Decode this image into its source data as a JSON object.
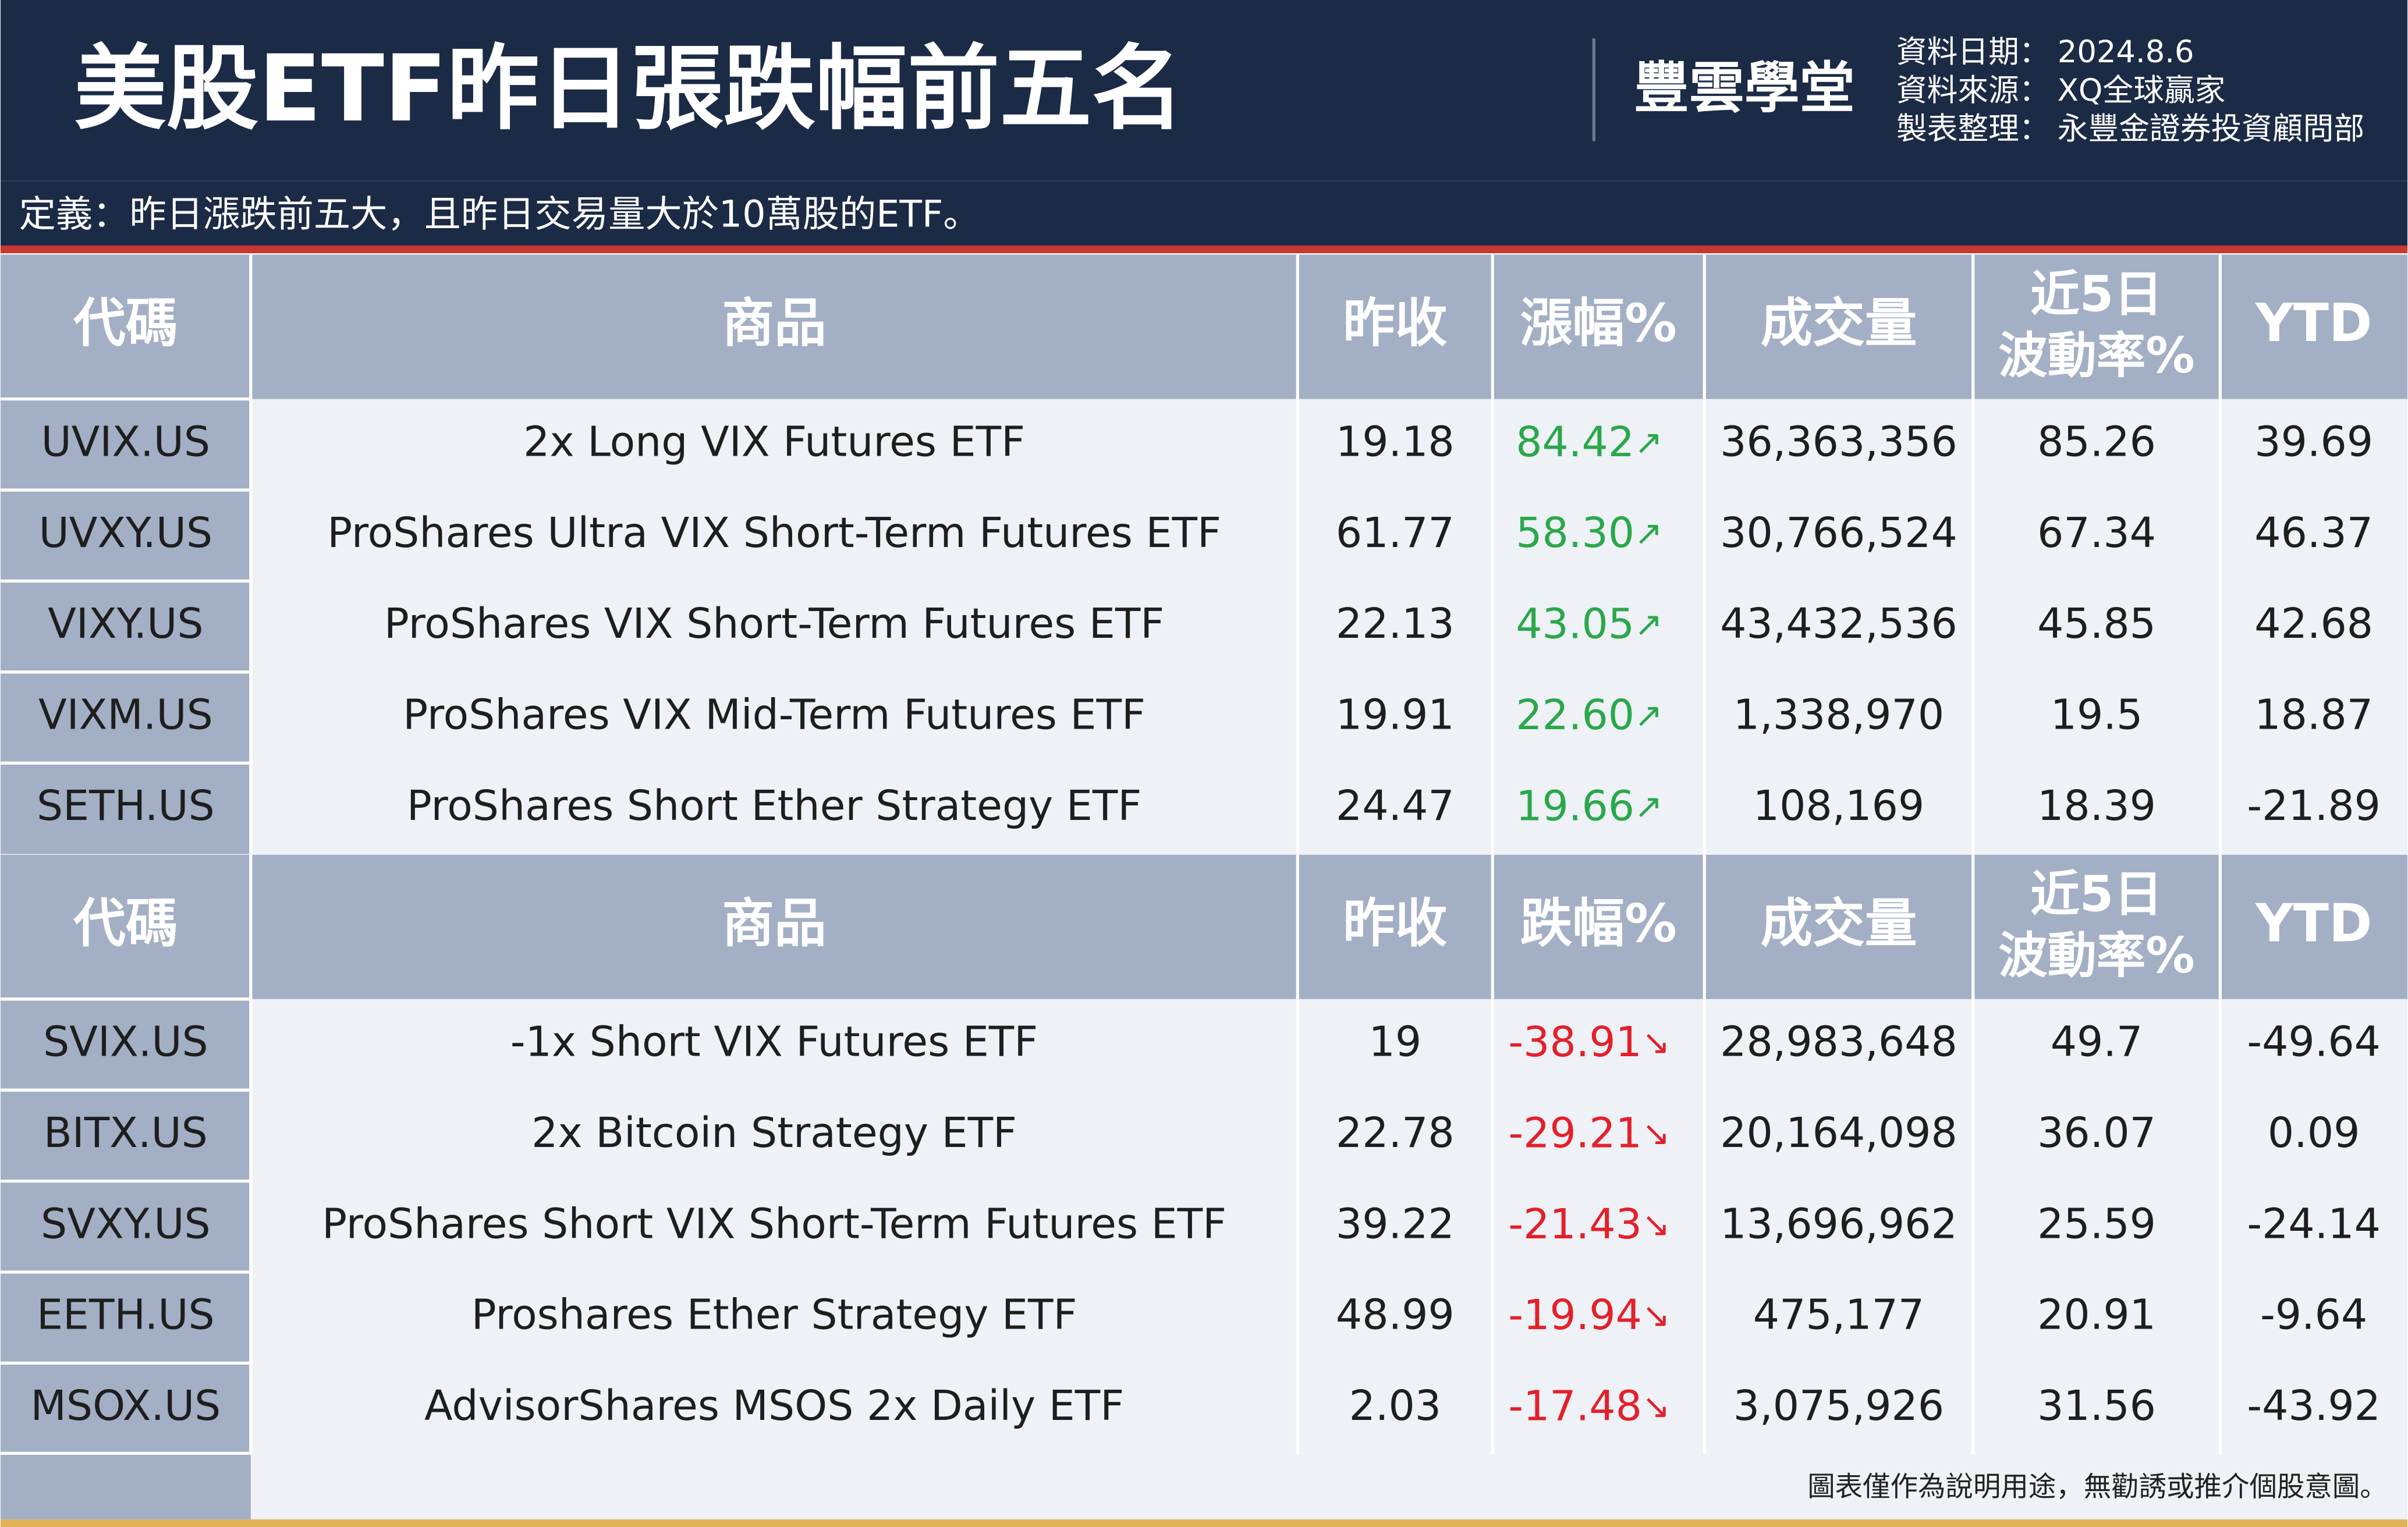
{
  "header": {
    "title": "美股ETF昨日張跌幅前五名",
    "brand": "豐雲學堂",
    "info": [
      {
        "label": "資料日期：",
        "value": "2024.8.6"
      },
      {
        "label": "資料來源：",
        "value": "XQ全球贏家"
      },
      {
        "label": "製表整理：",
        "value": "永豐金證券投資顧問部"
      }
    ]
  },
  "definition": "定義：昨日漲跌前五大，且昨日交易量大於10萬股的ETF。",
  "tables": [
    {
      "columns": [
        "代碼",
        "商品",
        "昨收",
        "漲幅%",
        "成交量",
        [
          "近5日",
          "波動率%"
        ],
        "YTD"
      ],
      "arrow": "↗",
      "rows": [
        [
          "UVIX.US",
          "2x Long VIX Futures ETF",
          "19.18",
          "84.42",
          "36,363,356",
          "85.26",
          "39.69"
        ],
        [
          "UVXY.US",
          "ProShares Ultra VIX Short-Term Futures ETF",
          "61.77",
          "58.30",
          "30,766,524",
          "67.34",
          "46.37"
        ],
        [
          "VIXY.US",
          "ProShares VIX Short-Term Futures ETF",
          "22.13",
          "43.05",
          "43,432,536",
          "45.85",
          "42.68"
        ],
        [
          "VIXM.US",
          "ProShares VIX Mid-Term Futures ETF",
          "19.91",
          "22.60",
          "1,338,970",
          "19.5",
          "18.87"
        ],
        [
          "SETH.US",
          "ProShares Short Ether Strategy ETF",
          "24.47",
          "19.66",
          "108,169",
          "18.39",
          "-21.89"
        ]
      ]
    },
    {
      "columns": [
        "代碼",
        "商品",
        "昨收",
        "跌幅%",
        "成交量",
        [
          "近5日",
          "波動率%"
        ],
        "YTD"
      ],
      "arrow": "↘",
      "rows": [
        [
          "SVIX.US",
          "-1x Short VIX Futures ETF",
          "19",
          "-38.91",
          "28,983,648",
          "49.7",
          "-49.64"
        ],
        [
          "BITX.US",
          "2x Bitcoin Strategy ETF",
          "22.78",
          "-29.21",
          "20,164,098",
          "36.07",
          "0.09"
        ],
        [
          "SVXY.US",
          "ProShares Short VIX Short-Term Futures ETF",
          "39.22",
          "-21.43",
          "13,696,962",
          "25.59",
          "-24.14"
        ],
        [
          "EETH.US",
          "Proshares Ether Strategy ETF",
          "48.99",
          "-19.94",
          "475,177",
          "20.91",
          "-9.64"
        ],
        [
          "MSOX.US",
          "AdvisorShares MSOS 2x Daily ETF",
          "2.03",
          "-17.48",
          "3,075,926",
          "31.56",
          "-43.92"
        ]
      ]
    }
  ],
  "footnote": "圖表僅作為說明用途，無勸誘或推介個股意圖。"
}
